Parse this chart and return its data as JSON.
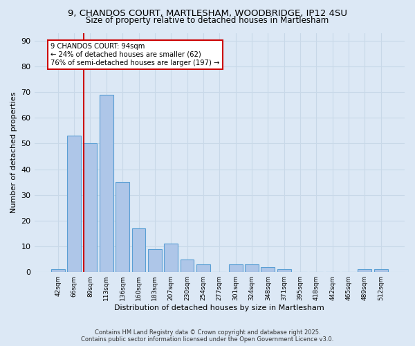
{
  "title_line1": "9, CHANDOS COURT, MARTLESHAM, WOODBRIDGE, IP12 4SU",
  "title_line2": "Size of property relative to detached houses in Martlesham",
  "xlabel": "Distribution of detached houses by size in Martlesham",
  "ylabel": "Number of detached properties",
  "categories": [
    "42sqm",
    "66sqm",
    "89sqm",
    "113sqm",
    "136sqm",
    "160sqm",
    "183sqm",
    "207sqm",
    "230sqm",
    "254sqm",
    "277sqm",
    "301sqm",
    "324sqm",
    "348sqm",
    "371sqm",
    "395sqm",
    "418sqm",
    "442sqm",
    "465sqm",
    "489sqm",
    "512sqm"
  ],
  "values": [
    1,
    53,
    50,
    69,
    35,
    17,
    9,
    11,
    5,
    3,
    0,
    3,
    3,
    2,
    1,
    0,
    0,
    0,
    0,
    1,
    1
  ],
  "bar_color": "#aec6e8",
  "bar_edge_color": "#5a9fd4",
  "annotation_title": "9 CHANDOS COURT: 94sqm",
  "annotation_line2": "← 24% of detached houses are smaller (62)",
  "annotation_line3": "76% of semi-detached houses are larger (197) →",
  "annotation_box_color": "#ffffff",
  "annotation_box_edge": "#cc0000",
  "vline_color": "#cc0000",
  "vline_x": 1.575,
  "ylim": [
    0,
    93
  ],
  "yticks": [
    0,
    10,
    20,
    30,
    40,
    50,
    60,
    70,
    80,
    90
  ],
  "grid_color": "#c8d8e8",
  "background_color": "#dce8f5",
  "footer_line1": "Contains HM Land Registry data © Crown copyright and database right 2025.",
  "footer_line2": "Contains public sector information licensed under the Open Government Licence v3.0."
}
